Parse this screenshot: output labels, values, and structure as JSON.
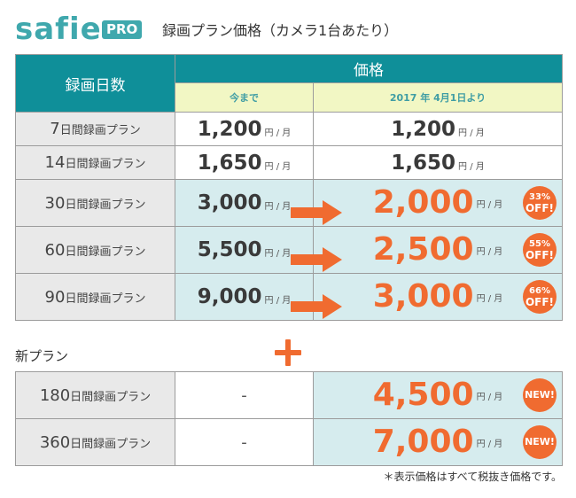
{
  "header": {
    "logo": "safie",
    "badge": "PRO",
    "title": "録画プラン価格（カメラ1台あたり）"
  },
  "table": {
    "col_plan": "録画日数",
    "col_price": "価格",
    "col_current": "今まで",
    "col_new": "2017 年 4月1日より",
    "unit": "円 / 月",
    "rows": [
      {
        "days": "7",
        "suffix": "日間録画プラン",
        "old": "1,200",
        "new": "1,200"
      },
      {
        "days": "14",
        "suffix": "日間録画プラン",
        "old": "1,650",
        "new": "1,650"
      },
      {
        "days": "30",
        "suffix": "日間録画プラン",
        "old": "3,000",
        "new": "2,000",
        "pct": "33%",
        "off": "OFF!"
      },
      {
        "days": "60",
        "suffix": "日間録画プラン",
        "old": "5,500",
        "new": "2,500",
        "pct": "55%",
        "off": "OFF!"
      },
      {
        "days": "90",
        "suffix": "日間録画プラン",
        "old": "9,000",
        "new": "3,000",
        "pct": "66%",
        "off": "OFF!"
      }
    ]
  },
  "new_plans": {
    "label": "新プラン",
    "rows": [
      {
        "days": "180",
        "suffix": "日間録画プラン",
        "old": "-",
        "new": "4,500",
        "badge": "NEW!"
      },
      {
        "days": "360",
        "suffix": "日間録画プラン",
        "old": "-",
        "new": "7,000",
        "badge": "NEW!"
      }
    ]
  },
  "footnote": "＊表示価格はすべて税抜き価格です。",
  "colors": {
    "brand": "#3fa8ad",
    "header_teal": "#0f8f99",
    "highlight": "#f06b30",
    "subheader_bg": "#f2f7c4",
    "row_teal_bg": "#d6ecee",
    "plan_bg": "#e9e9e9"
  }
}
